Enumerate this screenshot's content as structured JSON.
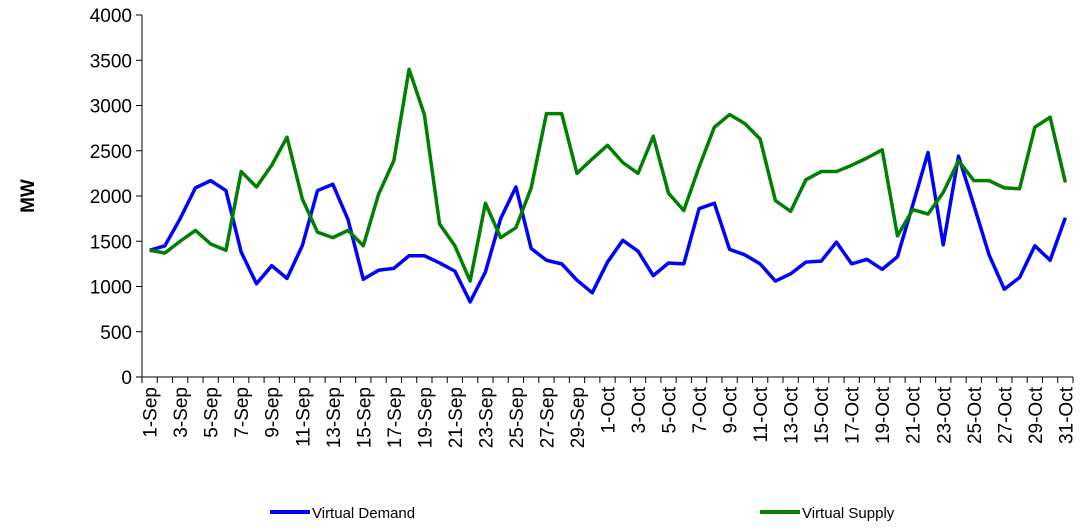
{
  "chart_data": {
    "type": "line",
    "y_label": "MW",
    "categories": [
      "1-Sep",
      null,
      "3-Sep",
      null,
      "5-Sep",
      null,
      "7-Sep",
      null,
      "9-Sep",
      null,
      "11-Sep",
      null,
      "13-Sep",
      null,
      "15-Sep",
      null,
      "17-Sep",
      null,
      "19-Sep",
      null,
      "21-Sep",
      null,
      "23-Sep",
      null,
      "25-Sep",
      null,
      "27-Sep",
      null,
      "29-Sep",
      null,
      "1-Oct",
      null,
      "3-Oct",
      null,
      "5-Oct",
      null,
      "7-Oct",
      null,
      "9-Oct",
      null,
      "11-Oct",
      null,
      "13-Oct",
      null,
      "15-Oct",
      null,
      "17-Oct",
      null,
      "19-Oct",
      null,
      "21-Oct",
      null,
      "23-Oct",
      null,
      "25-Oct",
      null,
      "27-Oct",
      null,
      "29-Oct",
      null,
      "31-Oct"
    ],
    "series": [
      {
        "name": "Virtual Demand",
        "color": "#0000ff",
        "values": [
          1400,
          1450,
          1750,
          2090,
          2170,
          2060,
          1380,
          1030,
          1230,
          1090,
          1450,
          2060,
          2130,
          1740,
          1080,
          1180,
          1200,
          1340,
          1340,
          1260,
          1170,
          830,
          1160,
          1750,
          2100,
          1420,
          1290,
          1250,
          1070,
          930,
          1270,
          1510,
          1390,
          1120,
          1260,
          1250,
          1860,
          1920,
          1410,
          1350,
          1250,
          1060,
          1140,
          1270,
          1280,
          1490,
          1250,
          1300,
          1190,
          1330,
          1900,
          2480,
          1460,
          2440,
          1900,
          1350,
          970,
          1100,
          1450,
          1290,
          1760
        ]
      },
      {
        "name": "Virtual Supply",
        "color": "#008000",
        "values": [
          1400,
          1370,
          1500,
          1620,
          1470,
          1400,
          2270,
          2100,
          2340,
          2650,
          1970,
          1600,
          1540,
          1620,
          1450,
          2020,
          2390,
          3400,
          2900,
          1690,
          1450,
          1060,
          1920,
          1540,
          1650,
          2090,
          2910,
          2910,
          2250,
          2410,
          2560,
          2370,
          2250,
          2660,
          2030,
          1840,
          2320,
          2760,
          2900,
          2800,
          2630,
          1950,
          1830,
          2180,
          2270,
          2270,
          2340,
          2420,
          2510,
          1560,
          1850,
          1800,
          2040,
          2390,
          2170,
          2170,
          2090,
          2080,
          2760,
          2870,
          2150
        ]
      }
    ],
    "ylim": [
      0,
      4000
    ],
    "yticks": [
      0,
      500,
      1000,
      1500,
      2000,
      2500,
      3000,
      3500,
      4000
    ],
    "grid": false
  }
}
